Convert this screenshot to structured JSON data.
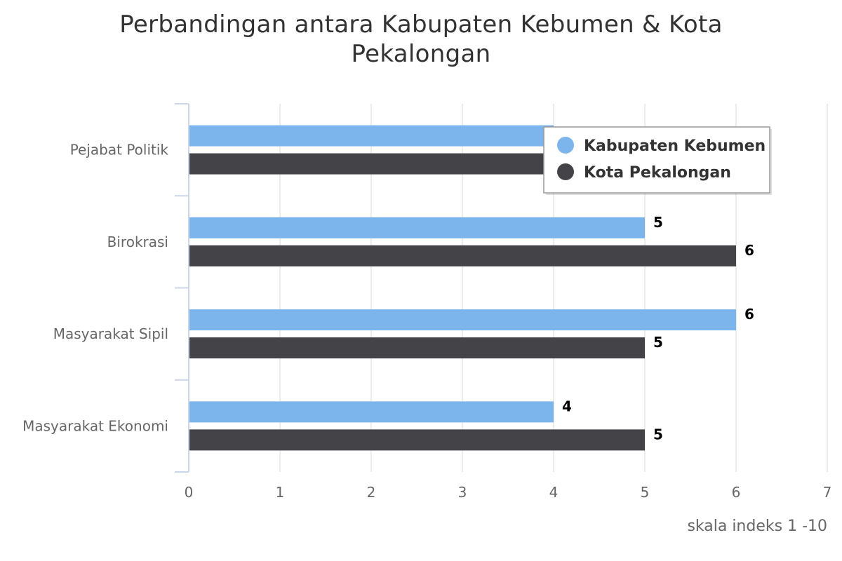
{
  "chart_data": {
    "type": "bar",
    "orientation": "horizontal",
    "title_lines": [
      "Perbandingan antara Kabupaten Kebumen & Kota",
      "Pekalongan"
    ],
    "categories": [
      "Pejabat Politik",
      "Birokrasi",
      "Masyarakat Sipil",
      "Masyarakat Ekonomi"
    ],
    "series": [
      {
        "name": "Kabupaten Kebumen",
        "color": "#7cb5ec",
        "values": [
          4,
          5,
          6,
          4
        ]
      },
      {
        "name": "Kota Pekalongan",
        "color": "#434348",
        "values": [
          4,
          6,
          5,
          5
        ]
      }
    ],
    "data_labels_visible": [
      [
        false,
        true,
        true,
        true
      ],
      [
        false,
        true,
        true,
        true
      ]
    ],
    "xlabel": "skala indeks 1 -10",
    "xlim": [
      0,
      7
    ],
    "xticks": [
      0,
      1,
      2,
      3,
      4,
      5,
      6,
      7
    ],
    "grid": true,
    "legend_position": "top-right"
  }
}
